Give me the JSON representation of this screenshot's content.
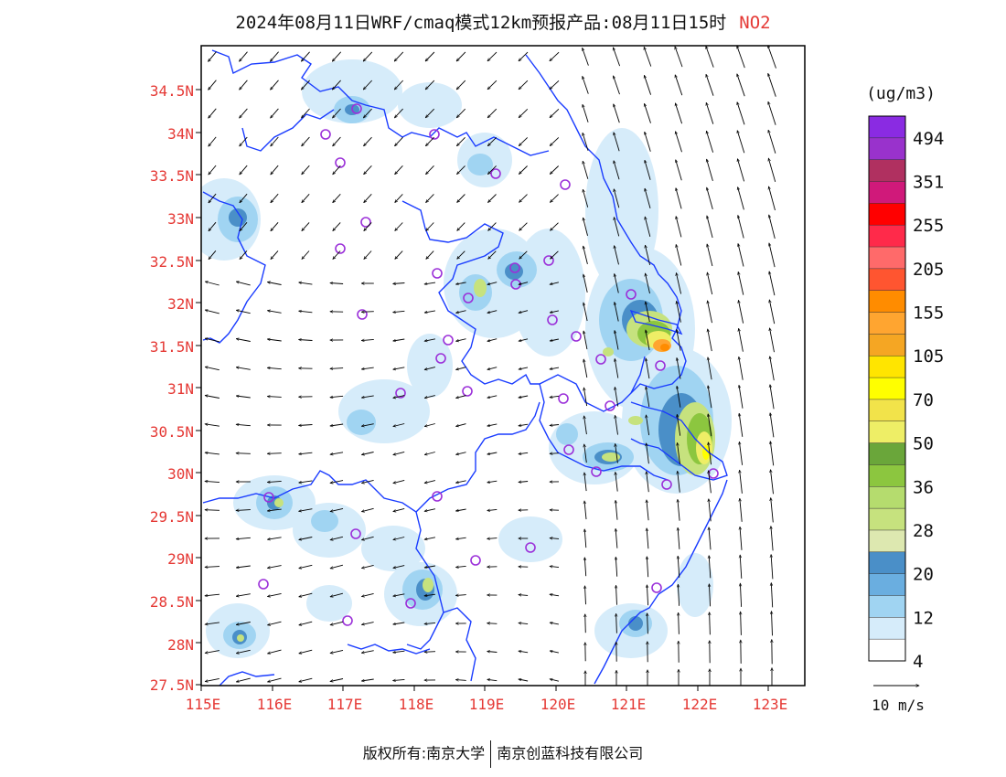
{
  "title": {
    "text": "2024年08月11日WRF/cmaq模式12km预报产品:08月11日15时",
    "pollutant": "NO2"
  },
  "axes": {
    "lat_ticks": [
      "27.5N",
      "28N",
      "28.5N",
      "29N",
      "29.5N",
      "30N",
      "30.5N",
      "31N",
      "31.5N",
      "32N",
      "32.5N",
      "33N",
      "33.5N",
      "34N",
      "34.5N"
    ],
    "lon_ticks": [
      "115E",
      "116E",
      "117E",
      "118E",
      "119E",
      "120E",
      "121E",
      "122E",
      "123E"
    ],
    "tick_color": "#e53935",
    "lon_range": [
      115,
      123.5
    ],
    "lat_range": [
      27.5,
      34.95
    ]
  },
  "legend": {
    "unit": "(ug/m3)",
    "labels": [
      "494",
      "351",
      "255",
      "205",
      "155",
      "105",
      "70",
      "50",
      "36",
      "28",
      "20",
      "12",
      "4"
    ],
    "colors": [
      "#8a2be2",
      "#9932cc",
      "#b03060",
      "#d0197a",
      "#ff0000",
      "#ff2a4a",
      "#ff6a6a",
      "#ff5530",
      "#ff8c00",
      "#ffa530",
      "#f5a623",
      "#ffe500",
      "#ffff00",
      "#f2e34a",
      "#eeee66",
      "#6aa63a",
      "#8cc63f",
      "#b5dc6e",
      "#c6e27e",
      "#dde8b0",
      "#4a8fc8",
      "#6aaee0",
      "#a0d4f2",
      "#d6ecfa",
      "#ffffff"
    ]
  },
  "wind_legend": {
    "label": "10 m/s"
  },
  "footer": {
    "left": "版权所有:南京大学",
    "right": "南京创蓝科技有限公司"
  }
}
